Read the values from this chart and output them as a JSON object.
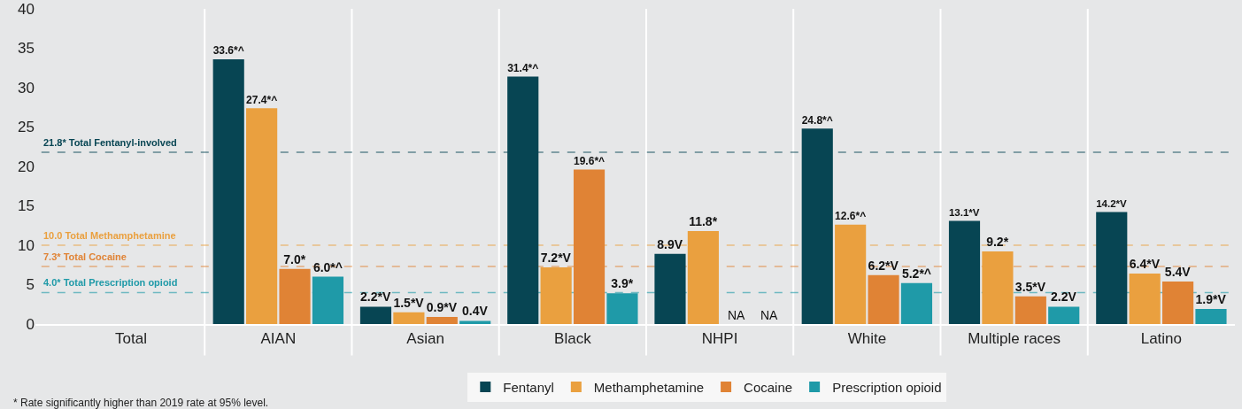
{
  "chart_data": {
    "type": "bar",
    "categories": [
      "Total",
      "AIAN",
      "Asian",
      "Black",
      "NHPI",
      "White",
      "Multiple races",
      "Latino"
    ],
    "series": [
      {
        "name": "Fentanyl",
        "color": "#074553",
        "values": [
          null,
          33.6,
          2.2,
          31.4,
          8.9,
          24.8,
          13.1,
          14.2
        ],
        "value_labels": [
          null,
          "33.6*^",
          "2.2*V",
          "31.4*^",
          "8.9V",
          "24.8*^",
          "13.1*V",
          "14.2*V"
        ]
      },
      {
        "name": "Methamphetamine",
        "color": "#eaa03f",
        "values": [
          null,
          27.4,
          1.5,
          7.2,
          11.8,
          12.6,
          9.2,
          6.4
        ],
        "value_labels": [
          null,
          "27.4*^",
          "1.5*V",
          "7.2*V",
          "11.8*",
          "12.6*^",
          "9.2*",
          "6.4*V"
        ]
      },
      {
        "name": "Cocaine",
        "color": "#e08335",
        "values": [
          null,
          7.0,
          0.9,
          19.6,
          null,
          6.2,
          3.5,
          5.4
        ],
        "value_labels": [
          null,
          "7.0*",
          "0.9*V",
          "19.6*^",
          "NA",
          "6.2*V",
          "3.5*V",
          "5.4V"
        ]
      },
      {
        "name": "Prescription opioid",
        "color": "#1f9aa8",
        "values": [
          null,
          6.0,
          0.4,
          3.9,
          null,
          5.2,
          2.2,
          1.9
        ],
        "value_labels": [
          null,
          "6.0*^",
          "0.4V",
          "3.9*",
          "NA",
          "5.2*^",
          "2.2V",
          "1.9*V"
        ]
      }
    ],
    "ylim": [
      0,
      40
    ],
    "yticks": [
      0,
      5,
      10,
      15,
      20,
      25,
      30,
      35,
      40
    ],
    "ref_lines": [
      {
        "axis": "y",
        "value": 21.8,
        "label": "21.8* Total Fentanyl-involved",
        "color": "#074553",
        "line_style": "dashed"
      },
      {
        "axis": "y",
        "value": 10.0,
        "label": "10.0 Total Methamphetamine",
        "color": "#eaa03f",
        "line_style": "dashed"
      },
      {
        "axis": "y",
        "value": 7.3,
        "label": "7.3* Total Cocaine",
        "color": "#e08335",
        "line_style": "dashed"
      },
      {
        "axis": "y",
        "value": 4.0,
        "label": "4.0* Total Prescription opioid",
        "color": "#1f9aa8",
        "line_style": "dashed"
      }
    ],
    "annotations": [
      "* Rate significantly higher than 2019 rate at 95% level."
    ],
    "legend": "bottom",
    "grid": false
  }
}
